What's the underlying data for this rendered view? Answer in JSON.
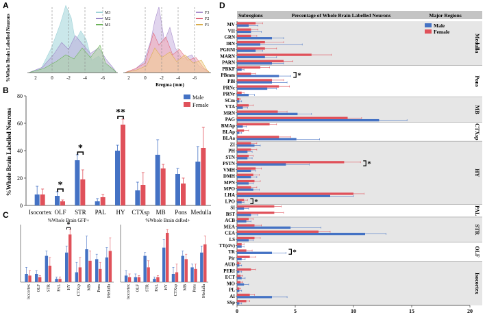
{
  "colors": {
    "male": "#4472c4",
    "female": "#e0515a",
    "shade": "#e6e6e6",
    "header": "#c4c4c4"
  },
  "panelA": {
    "letter": "A",
    "ylabel": "%Whole Brain Labelled Neurons",
    "xlabel": "Bregma (mm)",
    "left_ticks": [
      "2",
      "0",
      "-2",
      "-4",
      "-6"
    ],
    "right_ticks": [
      "2",
      "0",
      "-2",
      "-4",
      "-6"
    ],
    "left_legend": [
      "M3",
      "M2",
      "M1"
    ],
    "right_legend": [
      "F3",
      "F2",
      "F1"
    ]
  },
  "panelB": {
    "letter": "B",
    "chart_data": {
      "type": "bar",
      "title": "",
      "ylabel": "%Whole Brain Labelled Neurons",
      "ylim": [
        0,
        80
      ],
      "yticks": [
        "0",
        "20",
        "40",
        "60",
        "80"
      ],
      "categories": [
        "Isocortex",
        "OLF",
        "STR",
        "PAL",
        "HY",
        "CTXsp",
        "MB",
        "Pons",
        "Medulla"
      ],
      "series": [
        {
          "name": "Male",
          "values": [
            8,
            7,
            33,
            3,
            40,
            11,
            37,
            23,
            32
          ],
          "err": [
            6,
            3,
            4,
            2,
            4,
            6,
            11,
            4,
            11
          ]
        },
        {
          "name": "Female",
          "values": [
            8,
            3,
            19,
            6,
            59,
            15,
            27,
            16,
            42
          ],
          "err": [
            4,
            1,
            7,
            2,
            4,
            9,
            3,
            4,
            15
          ]
        }
      ],
      "significance": [
        "",
        "*",
        "*",
        "",
        "**",
        "",
        "",
        "",
        ""
      ]
    }
  },
  "panelC": {
    "letter": "C",
    "chart_data": [
      {
        "type": "bar",
        "title": "%Whole Brain GFP+",
        "ylim": [
          0,
          35
        ],
        "categories": [
          "Isocortex",
          "OLF",
          "STR",
          "PAL",
          "HY",
          "CTXsp",
          "MB",
          "Pons",
          "Medulla"
        ],
        "series": [
          {
            "name": "Male",
            "values": [
              5,
              5,
              16,
              2,
              18,
              6,
              20,
              14,
              15
            ],
            "err": [
              4,
              2,
              3,
              1,
              4,
              6,
              8,
              3,
              6
            ]
          },
          {
            "name": "Female",
            "values": [
              4,
              3,
              10,
              2,
              29,
              9,
              13,
              8,
              19
            ],
            "err": [
              3,
              1,
              5,
              1,
              3,
              6,
              6,
              4,
              8
            ]
          }
        ],
        "significance": [
          "",
          "",
          "",
          "",
          "*",
          "",
          "",
          "",
          ""
        ]
      },
      {
        "type": "bar",
        "title": "%Whole Brain dsRed+",
        "ylim": [
          0,
          35
        ],
        "categories": [
          "Isocortex",
          "OLF",
          "STR",
          "PAL",
          "HY",
          "CTXsp",
          "MB",
          "Pons",
          "Medulla"
        ],
        "series": [
          {
            "name": "Male",
            "values": [
              4,
              3,
              16,
              2,
              21,
              5,
              16,
              9,
              18
            ],
            "err": [
              3,
              2,
              2,
              1,
              5,
              4,
              3,
              2,
              4
            ]
          },
          {
            "name": "Female",
            "values": [
              3,
              3,
              9,
              3,
              30,
              6,
              14,
              8,
              23
            ],
            "err": [
              2,
              1,
              4,
              1,
              2,
              5,
              3,
              3,
              5
            ]
          }
        ],
        "significance": [
          "",
          "",
          "",
          "",
          "",
          "",
          "",
          "",
          ""
        ]
      }
    ]
  },
  "panelD": {
    "letter": "D",
    "header": {
      "subregions": "Subregions",
      "percent": "Percentage of Whole Brain Labelled Neurons",
      "major": "Major Regions"
    },
    "chart_data": {
      "type": "bar",
      "orientation": "horizontal",
      "xlim": [
        0,
        20
      ],
      "xticks": [
        "0",
        "5",
        "10",
        "15",
        "20"
      ],
      "categories": [
        "MV",
        "VII",
        "GRN",
        "IRN",
        "PGRNl",
        "MARN",
        "PARN",
        "PBKF",
        "PBmm",
        "PBl",
        "PRNc",
        "PRNr",
        "SCm",
        "VTA",
        "MRN",
        "PAG",
        "BMAp",
        "BLAp",
        "BLAa",
        "ZI",
        "PH",
        "STN",
        "PSTN",
        "VMH",
        "DMH",
        "MPN",
        "MPO",
        "LHA",
        "LPO",
        "SI",
        "BST",
        "ACB",
        "MEA",
        "CEA",
        "LS",
        "TT(d/v)",
        "TR",
        "Pir",
        "AUD",
        "PERI",
        "ECT",
        "MO",
        "PL",
        "AI",
        "SSp"
      ],
      "series": [
        {
          "name": "Male",
          "values": [
            1.0,
            1.2,
            3.0,
            2.0,
            1.6,
            2.4,
            3.0,
            0.4,
            3.6,
            3.0,
            2.6,
            1.0,
            0.2,
            0.5,
            5.2,
            12.2,
            0.5,
            0.2,
            5.1,
            1.5,
            0.9,
            0.9,
            4.2,
            1.2,
            1.2,
            1.0,
            1.4,
            8.0,
            0.4,
            0.6,
            1.2,
            0.8,
            4.6,
            11.0,
            1.0,
            0.4,
            3.0,
            0.4,
            0.2,
            0.2,
            0.4,
            0.6,
            0.2,
            3.0,
            0.2
          ],
          "err": [
            0.8,
            0.9,
            1.0,
            3.6,
            0.6,
            1.0,
            1.0,
            0.2,
            1.0,
            1.3,
            0.8,
            0.5,
            0.2,
            0.4,
            1.2,
            2.4,
            0.3,
            0.2,
            2.0,
            0.5,
            0.4,
            0.4,
            2.0,
            0.4,
            0.5,
            0.4,
            0.5,
            2.0,
            0.2,
            0.4,
            0.6,
            0.4,
            2.6,
            1.8,
            0.4,
            0.2,
            1.2,
            0.3,
            0.2,
            0.2,
            0.3,
            0.4,
            0.2,
            1.3,
            0.2
          ]
        },
        {
          "name": "Female",
          "values": [
            1.6,
            1.2,
            1.2,
            2.4,
            2.4,
            6.4,
            4.0,
            2.0,
            1.2,
            3.0,
            3.6,
            0.4,
            0.2,
            1.0,
            3.5,
            9.5,
            2.8,
            0.6,
            3.6,
            1.2,
            1.2,
            1.0,
            9.2,
            1.6,
            1.4,
            1.5,
            1.2,
            10.0,
            0.6,
            3.2,
            3.2,
            1.0,
            1.5,
            7.0,
            1.5,
            0.4,
            0.8,
            1.1,
            0.2,
            1.2,
            0.3,
            0.3,
            0.2,
            1.1,
            0.8
          ],
          "err": [
            0.6,
            0.6,
            0.5,
            1.6,
            1.0,
            1.7,
            0.8,
            0.8,
            0.4,
            1.0,
            0.9,
            0.2,
            0.1,
            0.4,
            0.8,
            1.2,
            0.6,
            0.4,
            1.0,
            0.5,
            0.5,
            0.4,
            1.4,
            0.5,
            0.5,
            0.5,
            0.5,
            0.9,
            0.3,
            0.6,
            0.8,
            0.4,
            0.6,
            1.0,
            0.5,
            0.2,
            0.5,
            0.5,
            0.1,
            0.4,
            0.2,
            0.2,
            0.1,
            0.4,
            0.3
          ]
        }
      ],
      "significant": [
        "PBmm",
        "PSTN",
        "LPO",
        "TR"
      ],
      "star": "*",
      "major_regions": [
        {
          "name": "Medulla",
          "start": 0,
          "end": 7
        },
        {
          "name": "Pons",
          "start": 7,
          "end": 12
        },
        {
          "name": "MB",
          "start": 12,
          "end": 16
        },
        {
          "name": "CTXsp",
          "start": 16,
          "end": 19
        },
        {
          "name": "HY",
          "start": 19,
          "end": 29
        },
        {
          "name": "PAL",
          "start": 29,
          "end": 31
        },
        {
          "name": "STR",
          "start": 31,
          "end": 35
        },
        {
          "name": "OLF",
          "start": 35,
          "end": 38
        },
        {
          "name": "Isocortex",
          "start": 38,
          "end": 45
        }
      ]
    }
  }
}
